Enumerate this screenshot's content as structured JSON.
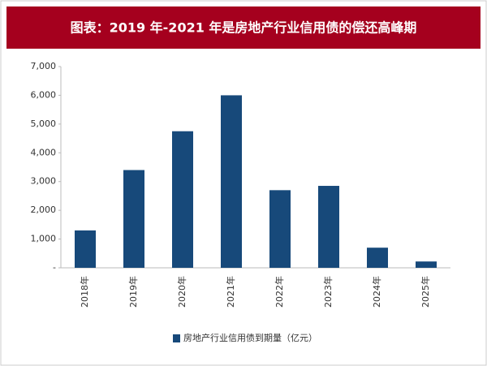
{
  "chart_data": {
    "type": "bar",
    "title": "图表：2019 年-2021 年是房地产行业信用债的偿还高峰期",
    "categories": [
      "2018年",
      "2019年",
      "2020年",
      "2021年",
      "2022年",
      "2023年",
      "2024年",
      "2025年"
    ],
    "series": [
      {
        "name": "房地产行业信用债到期量（亿元）",
        "color": "#17497a",
        "values": [
          1300,
          3400,
          4750,
          6000,
          2700,
          2850,
          700,
          220
        ]
      }
    ],
    "ylim": [
      0,
      7000
    ],
    "yticks": [
      {
        "value": 0,
        "label": "-"
      },
      {
        "value": 1000,
        "label": "1,000"
      },
      {
        "value": 2000,
        "label": "2,000"
      },
      {
        "value": 3000,
        "label": "3,000"
      },
      {
        "value": 4000,
        "label": "4,000"
      },
      {
        "value": 5000,
        "label": "5,000"
      },
      {
        "value": 6000,
        "label": "6,000"
      },
      {
        "value": 7000,
        "label": "7,000"
      }
    ],
    "grid": false,
    "legend": "bottom"
  }
}
